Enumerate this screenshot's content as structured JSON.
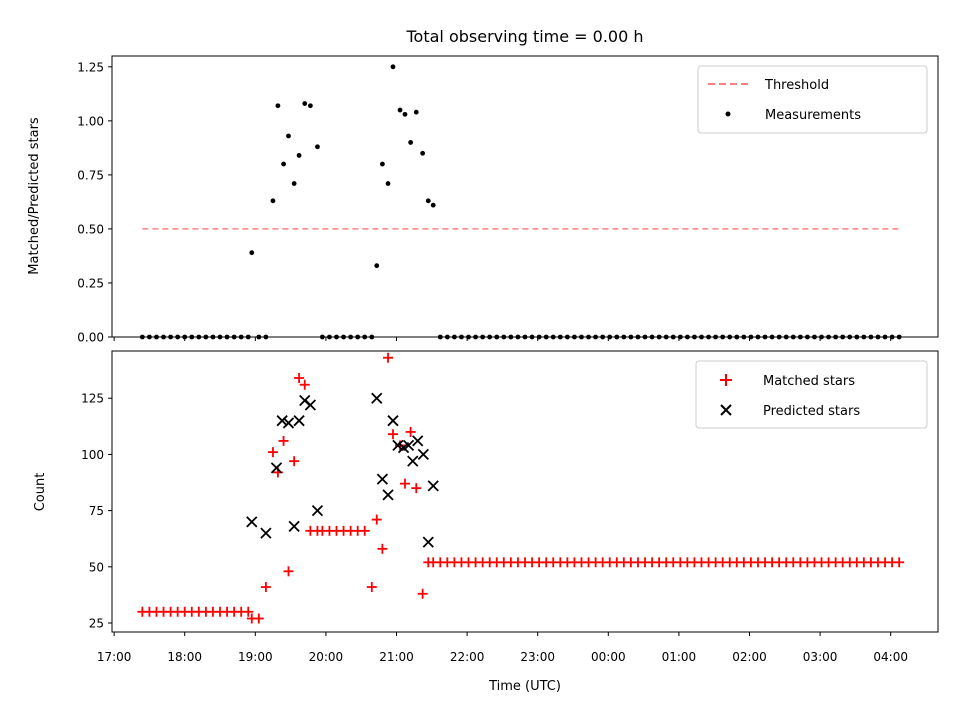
{
  "chart_data": [
    {
      "type": "scatter",
      "title": "Total observing time = 0.00 h",
      "xlabel": "",
      "ylabel": "Matched/Predicted stars",
      "ylim": [
        0,
        1.3
      ],
      "y_ticks": [
        "0.00",
        "0.25",
        "0.50",
        "0.75",
        "1.00",
        "1.25"
      ],
      "legend_position": "top-right",
      "series": [
        {
          "name": "Threshold",
          "style": "dashed-line",
          "color": "#ff7f7f",
          "x": [
            17.4,
            4.15
          ],
          "y": [
            0.5,
            0.5
          ]
        },
        {
          "name": "Measurements",
          "style": "dot",
          "color": "#000000",
          "x": [
            17.4,
            17.5,
            17.6,
            17.7,
            17.8,
            17.9,
            18.0,
            18.1,
            18.2,
            18.3,
            18.4,
            18.5,
            18.6,
            18.7,
            18.8,
            18.9,
            18.95,
            19.05,
            19.15,
            19.25,
            19.32,
            19.4,
            19.47,
            19.55,
            19.62,
            19.7,
            19.78,
            19.88,
            19.95,
            20.05,
            20.15,
            20.25,
            20.35,
            20.45,
            20.55,
            20.65,
            20.72,
            20.8,
            20.88,
            20.95,
            21.05,
            21.12,
            21.2,
            21.28,
            21.37,
            21.45,
            21.52,
            21.62,
            21.72,
            21.82,
            21.92,
            22.02,
            22.12,
            22.22,
            22.32,
            22.42,
            22.52,
            22.62,
            22.72,
            22.82,
            22.92,
            23.02,
            23.12,
            23.22,
            23.32,
            23.42,
            23.52,
            23.62,
            23.72,
            23.82,
            23.92,
            24.02,
            24.12,
            24.22,
            24.32,
            24.42,
            24.52,
            24.62,
            24.72,
            24.82,
            24.92,
            25.02,
            25.12,
            25.22,
            25.32,
            25.42,
            25.52,
            25.62,
            25.72,
            25.82,
            25.92,
            26.02,
            26.12,
            26.22,
            26.32,
            26.42,
            26.52,
            26.62,
            26.72,
            26.82,
            26.92,
            27.02,
            27.12,
            27.22,
            27.32,
            27.42,
            27.52,
            27.62,
            27.72,
            27.82,
            27.92,
            28.02,
            28.12
          ],
          "y": [
            0,
            0,
            0,
            0,
            0,
            0,
            0,
            0,
            0,
            0,
            0,
            0,
            0,
            0,
            0,
            0,
            0.39,
            0,
            0,
            0.63,
            1.07,
            0.8,
            0.93,
            0.71,
            0.84,
            1.08,
            1.07,
            0.88,
            0,
            0,
            0,
            0,
            0,
            0,
            0,
            0,
            0.33,
            0.8,
            0.71,
            1.25,
            1.05,
            1.03,
            0.9,
            1.04,
            0.85,
            0.63,
            0.61,
            0,
            0,
            0,
            0,
            0,
            0,
            0,
            0,
            0,
            0,
            0,
            0,
            0,
            0,
            0,
            0,
            0,
            0,
            0,
            0,
            0,
            0,
            0,
            0,
            0,
            0,
            0,
            0,
            0,
            0,
            0,
            0,
            0,
            0,
            0,
            0,
            0,
            0,
            0,
            0,
            0,
            0,
            0,
            0,
            0,
            0,
            0,
            0,
            0,
            0,
            0,
            0,
            0,
            0,
            0,
            0,
            0,
            0,
            0,
            0,
            0,
            0,
            0,
            0,
            0,
            0
          ]
        }
      ]
    },
    {
      "type": "scatter",
      "title": "",
      "xlabel": "Time (UTC)",
      "ylabel": "Count",
      "ylim": [
        21,
        146
      ],
      "xlim": [
        16.97,
        28.67
      ],
      "x_ticks": [
        "17:00",
        "18:00",
        "19:00",
        "20:00",
        "21:00",
        "22:00",
        "23:00",
        "00:00",
        "01:00",
        "02:00",
        "03:00",
        "04:00"
      ],
      "y_ticks": [
        "25",
        "50",
        "75",
        "100",
        "125"
      ],
      "legend_position": "top-right",
      "series": [
        {
          "name": "Matched stars",
          "marker": "+",
          "color": "#ff0000",
          "x": [
            17.4,
            17.5,
            17.6,
            17.7,
            17.8,
            17.9,
            18.0,
            18.1,
            18.2,
            18.3,
            18.4,
            18.5,
            18.6,
            18.7,
            18.8,
            18.9,
            18.95,
            19.05,
            19.15,
            19.25,
            19.32,
            19.4,
            19.47,
            19.55,
            19.62,
            19.7,
            19.78,
            19.88,
            19.95,
            20.05,
            20.15,
            20.25,
            20.35,
            20.45,
            20.55,
            20.65,
            20.72,
            20.8,
            20.88,
            20.95,
            21.05,
            21.12,
            21.2,
            21.28,
            21.37,
            21.45,
            21.52,
            21.62,
            21.72,
            21.82,
            21.92,
            22.02,
            22.12,
            22.22,
            22.32,
            22.42,
            22.52,
            22.62,
            22.72,
            22.82,
            22.92,
            23.02,
            23.12,
            23.22,
            23.32,
            23.42,
            23.52,
            23.62,
            23.72,
            23.82,
            23.92,
            24.02,
            24.12,
            24.22,
            24.32,
            24.42,
            24.52,
            24.62,
            24.72,
            24.82,
            24.92,
            25.02,
            25.12,
            25.22,
            25.32,
            25.42,
            25.52,
            25.62,
            25.72,
            25.82,
            25.92,
            26.02,
            26.12,
            26.22,
            26.32,
            26.42,
            26.52,
            26.62,
            26.72,
            26.82,
            26.92,
            27.02,
            27.12,
            27.22,
            27.32,
            27.42,
            27.52,
            27.62,
            27.72,
            27.82,
            27.92,
            28.02,
            28.12
          ],
          "y": [
            30,
            30,
            30,
            30,
            30,
            30,
            30,
            30,
            30,
            30,
            30,
            30,
            30,
            30,
            30,
            30,
            27,
            27,
            41,
            101,
            92,
            106,
            48,
            97,
            134,
            131,
            66,
            66,
            66,
            66,
            66,
            66,
            66,
            66,
            66,
            41,
            71,
            58,
            143,
            109,
            104,
            87,
            110,
            85,
            38,
            52,
            52,
            52,
            52,
            52,
            52,
            52,
            52,
            52,
            52,
            52,
            52,
            52,
            52,
            52,
            52,
            52,
            52,
            52,
            52,
            52,
            52,
            52,
            52,
            52,
            52,
            52,
            52,
            52,
            52,
            52,
            52,
            52,
            52,
            52,
            52,
            52,
            52,
            52,
            52,
            52,
            52,
            52,
            52,
            52,
            52,
            52,
            52,
            52,
            52,
            52,
            52,
            52,
            52,
            52,
            52,
            52,
            52,
            52,
            52,
            52,
            52,
            52,
            52,
            52,
            52,
            52,
            52
          ]
        },
        {
          "name": "Predicted stars",
          "marker": "x",
          "color": "#000000",
          "x": [
            18.95,
            19.15,
            19.3,
            19.38,
            19.47,
            19.55,
            19.62,
            19.7,
            19.78,
            19.88,
            20.72,
            20.8,
            20.88,
            20.95,
            21.02,
            21.1,
            21.17,
            21.23,
            21.3,
            21.38,
            21.45,
            21.52
          ],
          "y": [
            70,
            65,
            94,
            115,
            114,
            68,
            115,
            124,
            122,
            75,
            125,
            89,
            82,
            115,
            104,
            103,
            104,
            97,
            106,
            100,
            61,
            86
          ]
        }
      ]
    }
  ]
}
